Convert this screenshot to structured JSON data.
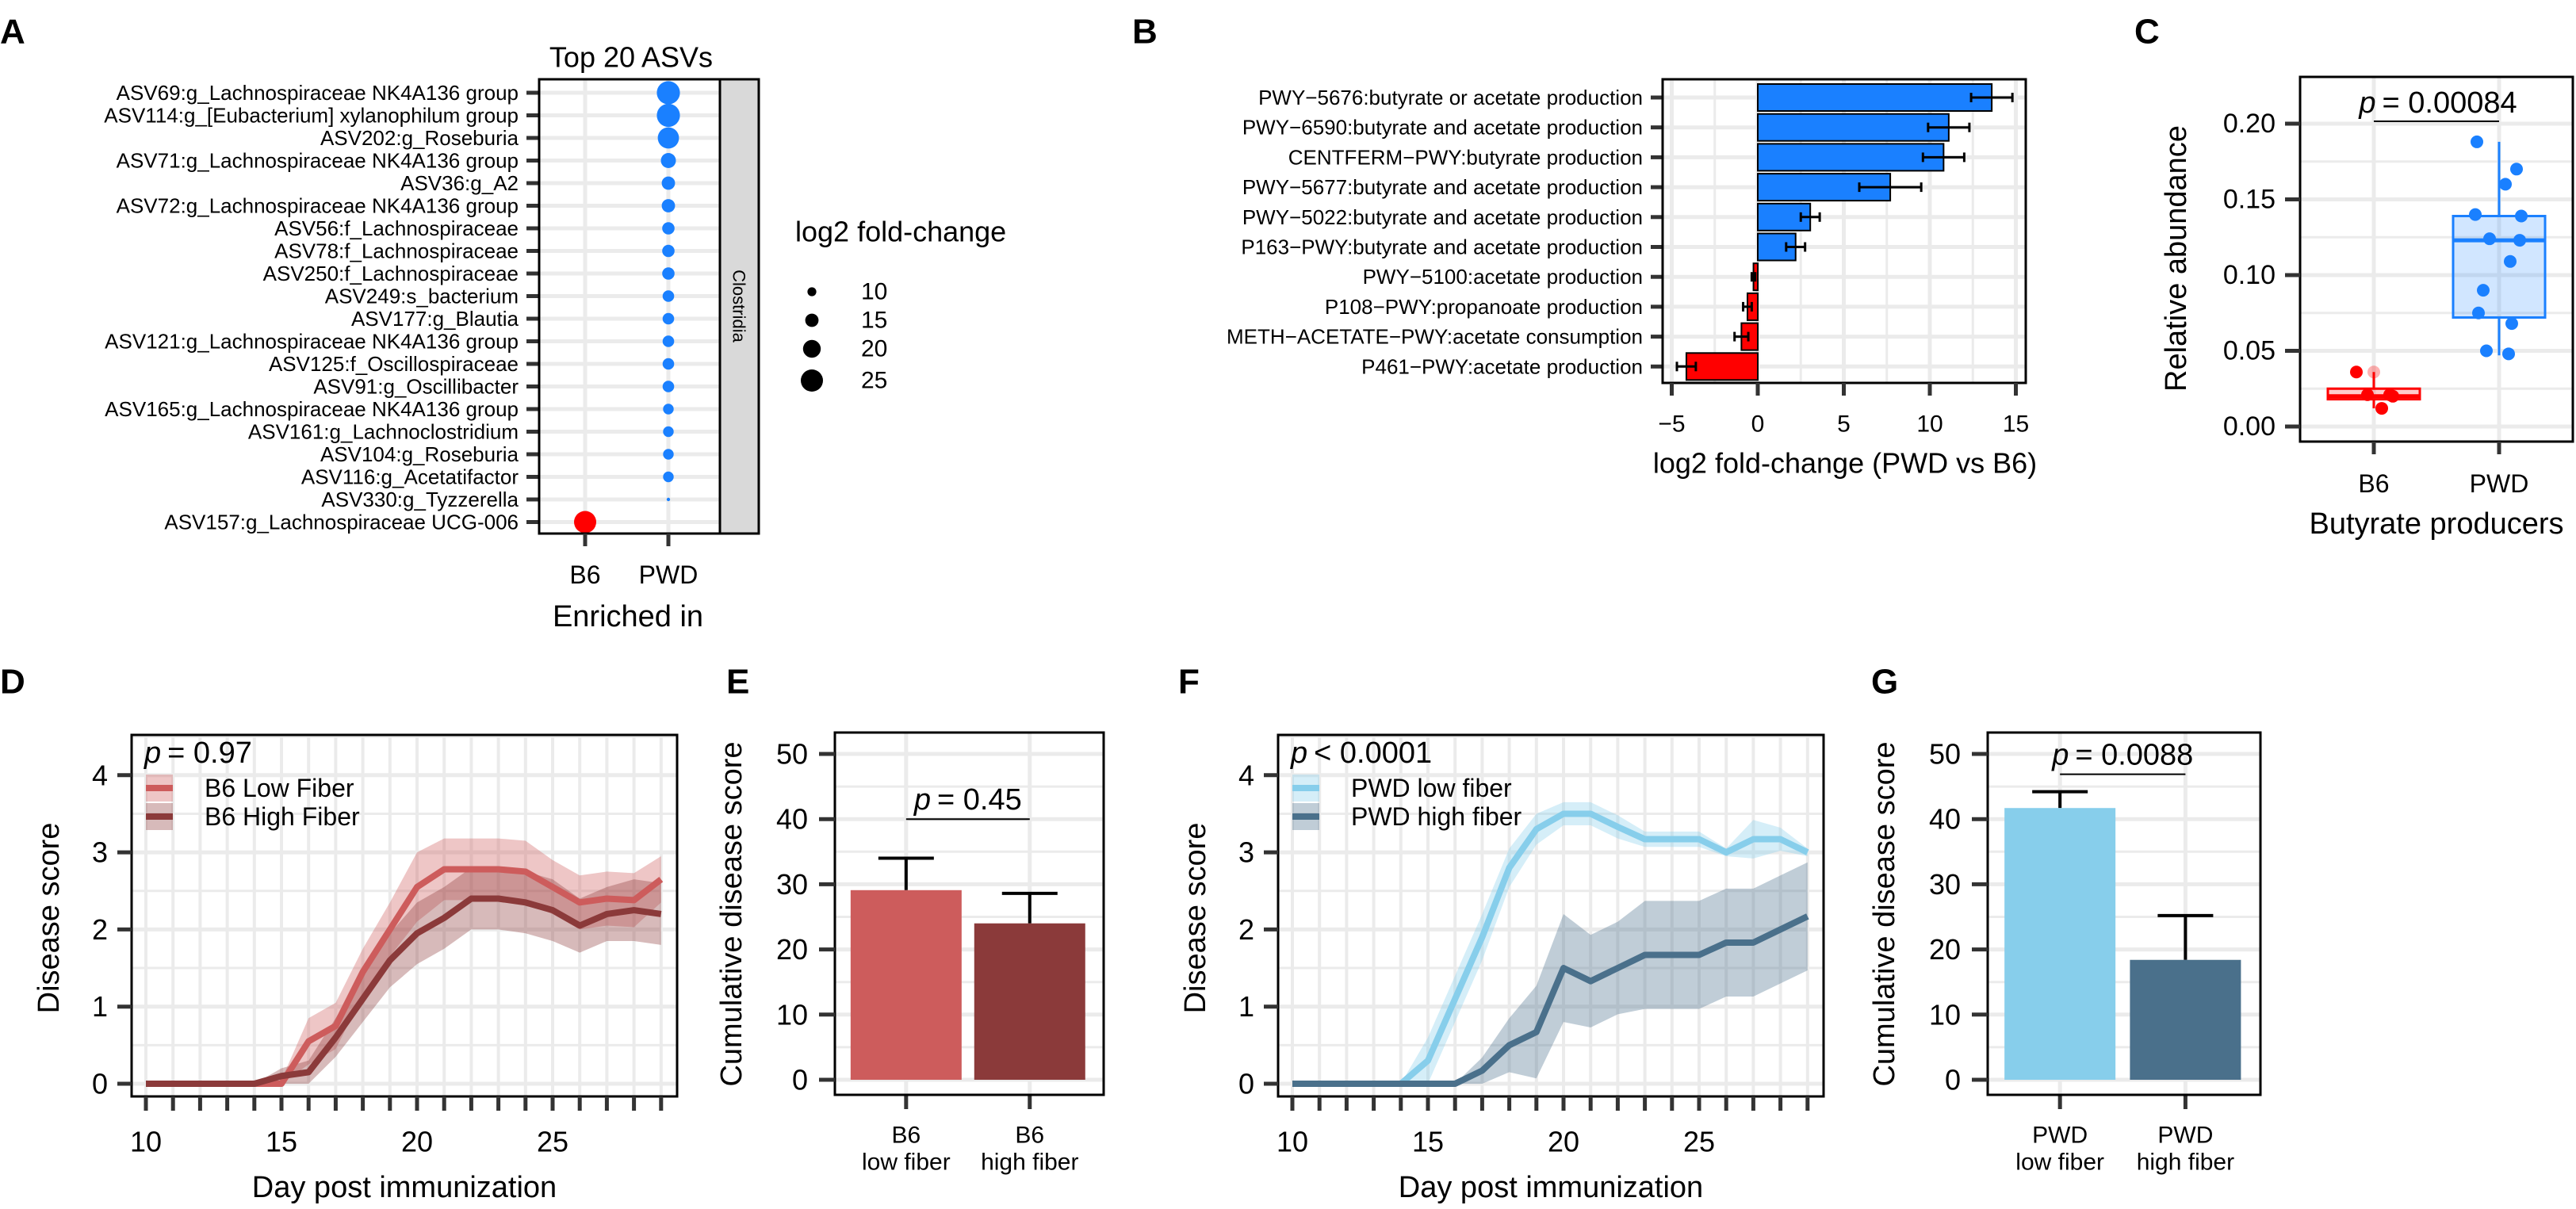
{
  "panel_letters": [
    "A",
    "B",
    "C",
    "D",
    "E",
    "F",
    "G"
  ],
  "chart_data": [
    {
      "panel": "A",
      "type": "scatter",
      "title": "Top 20 ASVs",
      "xlabel": "Enriched in",
      "x_categories": [
        "B6",
        "PWD"
      ],
      "facet_strip": "Clostridia",
      "legend": {
        "title": "log2 fold-change",
        "sizes": [
          10,
          15,
          20,
          25
        ],
        "labels": [
          "10",
          "15",
          "20",
          "25"
        ]
      },
      "colors": {
        "B6": "#ff0000",
        "PWD": "#1a80ff"
      },
      "rows": [
        {
          "label": "ASV69:g_Lachnospiraceae NK4A136 group",
          "group": "PWD",
          "lfc": 26
        },
        {
          "label": "ASV114:g_[Eubacterium] xylanophilum group",
          "group": "PWD",
          "lfc": 26
        },
        {
          "label": "ASV202:g_Roseburia",
          "group": "PWD",
          "lfc": 24
        },
        {
          "label": "ASV71:g_Lachnospiraceae NK4A136 group",
          "group": "PWD",
          "lfc": 17
        },
        {
          "label": "ASV36:g_A2",
          "group": "PWD",
          "lfc": 15
        },
        {
          "label": "ASV72:g_Lachnospiraceae NK4A136 group",
          "group": "PWD",
          "lfc": 15
        },
        {
          "label": "ASV56:f_Lachnospiraceae",
          "group": "PWD",
          "lfc": 14
        },
        {
          "label": "ASV78:f_Lachnospiraceae",
          "group": "PWD",
          "lfc": 14
        },
        {
          "label": "ASV250:f_Lachnospiraceae",
          "group": "PWD",
          "lfc": 14
        },
        {
          "label": "ASV249:s_bacterium",
          "group": "PWD",
          "lfc": 13
        },
        {
          "label": "ASV177:g_Blautia",
          "group": "PWD",
          "lfc": 13
        },
        {
          "label": "ASV121:g_Lachnospiraceae NK4A136 group",
          "group": "PWD",
          "lfc": 13
        },
        {
          "label": "ASV125:f_Oscillospiraceae",
          "group": "PWD",
          "lfc": 13
        },
        {
          "label": "ASV91:g_Oscillibacter",
          "group": "PWD",
          "lfc": 13
        },
        {
          "label": "ASV165:g_Lachnospiraceae NK4A136 group",
          "group": "PWD",
          "lfc": 12
        },
        {
          "label": "ASV161:g_Lachnoclostridium",
          "group": "PWD",
          "lfc": 12
        },
        {
          "label": "ASV104:g_Roseburia",
          "group": "PWD",
          "lfc": 12
        },
        {
          "label": "ASV116:g_Acetatifactor",
          "group": "PWD",
          "lfc": 12
        },
        {
          "label": "ASV330:g_Tyzzerella",
          "group": "PWD",
          "lfc": 4
        },
        {
          "label": "ASV157:g_Lachnospiraceae UCG-006",
          "group": "B6",
          "lfc": 25
        }
      ]
    },
    {
      "panel": "B",
      "type": "bar",
      "orientation": "horizontal",
      "xlabel": "log2 fold-change (PWD vs B6)",
      "xlim": [
        -5.5,
        15.6
      ],
      "xticks": [
        -5,
        0,
        5,
        10,
        15
      ],
      "xtick_labels": [
        "−5",
        "0",
        "5",
        "10",
        "15"
      ],
      "colors": {
        "positive": "#1a80ff",
        "negative": "#ff0000"
      },
      "categories": [
        "PWY−5676:butyrate or acetate production",
        "PWY−6590:butyrate and acetate production",
        "CENTFERM−PWY:butyrate production",
        "PWY−5677:butyrate and acetate production",
        "PWY−5022:butyrate and acetate production",
        "P163−PWY:butyrate and acetate production",
        "PWY−5100:acetate production",
        "P108−PWY:propanoate production",
        "METH−ACETATE−PWY:acetate consumption",
        "P461−PWY:acetate production"
      ],
      "values": [
        13.6,
        11.1,
        10.8,
        7.7,
        3.05,
        2.2,
        -0.25,
        -0.6,
        -0.95,
        -4.15
      ],
      "errors": [
        1.2,
        1.2,
        1.2,
        1.8,
        0.55,
        0.55,
        0.1,
        0.25,
        0.4,
        0.55
      ]
    },
    {
      "panel": "C",
      "type": "box",
      "ylabel": "Relative abundance",
      "xlabel": "Butyrate producers",
      "ylim": [
        0,
        0.22
      ],
      "yticks": [
        0,
        0.05,
        0.1,
        0.15,
        0.2
      ],
      "ytick_labels": [
        "0.00",
        "0.05",
        "0.10",
        "0.15",
        "0.20"
      ],
      "p_symbol": "p",
      "p_text": "= 0.00084",
      "groups": [
        {
          "name": "B6",
          "color": "#ff0000",
          "box": {
            "min": 0.012,
            "q1": 0.018,
            "median": 0.02,
            "q3": 0.025,
            "max": 0.036
          },
          "points": [
            0.036,
            0.036,
            0.021,
            0.021,
            0.02,
            0.012
          ]
        },
        {
          "name": "PWD",
          "color": "#1a80ff",
          "box": {
            "min": 0.047,
            "q1": 0.072,
            "median": 0.123,
            "q3": 0.139,
            "max": 0.188
          },
          "points": [
            0.188,
            0.17,
            0.16,
            0.14,
            0.139,
            0.124,
            0.123,
            0.109,
            0.09,
            0.075,
            0.068,
            0.05,
            0.048
          ]
        }
      ]
    },
    {
      "panel": "D",
      "type": "line",
      "xlabel": "Day post immunization",
      "ylabel": "Disease score",
      "xlim": [
        10,
        29
      ],
      "ylim": [
        0,
        4
      ],
      "xtick_labels": [
        "10",
        "15",
        "20",
        "25"
      ],
      "ytick_labels": [
        "0",
        "1",
        "2",
        "3",
        "4"
      ],
      "p_symbol": "p",
      "p_text": "= 0.97",
      "x": [
        10,
        11,
        12,
        13,
        14,
        15,
        16,
        17,
        18,
        19,
        20,
        21,
        22,
        23,
        24,
        25,
        26,
        27,
        28,
        29
      ],
      "series": [
        {
          "name": "B6 Low Fiber",
          "color": "#cd5c5c",
          "values": [
            0,
            0,
            0,
            0,
            0,
            0,
            0.55,
            0.75,
            1.45,
            2.0,
            2.55,
            2.78,
            2.78,
            2.78,
            2.75,
            2.55,
            2.35,
            2.4,
            2.38,
            2.65
          ],
          "se": [
            0,
            0,
            0,
            0,
            0,
            0.05,
            0.3,
            0.3,
            0.3,
            0.35,
            0.45,
            0.4,
            0.4,
            0.4,
            0.4,
            0.35,
            0.35,
            0.35,
            0.35,
            0.3
          ]
        },
        {
          "name": "B6 High Fiber",
          "color": "#8b3a3a",
          "values": [
            0,
            0,
            0,
            0,
            0,
            0.1,
            0.15,
            0.6,
            1.1,
            1.6,
            1.95,
            2.15,
            2.4,
            2.4,
            2.35,
            2.25,
            2.05,
            2.2,
            2.25,
            2.2
          ],
          "se": [
            0,
            0,
            0,
            0,
            0,
            0.1,
            0.15,
            0.25,
            0.3,
            0.35,
            0.4,
            0.4,
            0.4,
            0.4,
            0.4,
            0.4,
            0.35,
            0.35,
            0.4,
            0.4
          ]
        }
      ]
    },
    {
      "panel": "E",
      "type": "bar",
      "ylabel": "Cumulative disease score",
      "ylim": [
        0,
        50
      ],
      "ytick_labels": [
        "0",
        "10",
        "20",
        "30",
        "40",
        "50"
      ],
      "p_symbol": "p",
      "p_text": "= 0.45",
      "categories": [
        [
          "B6",
          "low fiber"
        ],
        [
          "B6",
          "high fiber"
        ]
      ],
      "values": [
        29.1,
        24.0
      ],
      "errors": [
        4.9,
        4.6
      ],
      "colors": [
        "#cd5c5c",
        "#8b3a3a"
      ]
    },
    {
      "panel": "F",
      "type": "line",
      "xlabel": "Day post immunization",
      "ylabel": "Disease score",
      "xlim": [
        10,
        29
      ],
      "ylim": [
        0,
        4
      ],
      "xtick_labels": [
        "10",
        "15",
        "20",
        "25"
      ],
      "ytick_labels": [
        "0",
        "1",
        "2",
        "3",
        "4"
      ],
      "p_symbol": "p",
      "p_text": "< 0.0001",
      "x": [
        10,
        11,
        12,
        13,
        14,
        15,
        16,
        17,
        18,
        19,
        20,
        21,
        22,
        23,
        24,
        25,
        26,
        27,
        28,
        29
      ],
      "series": [
        {
          "name": "PWD low fiber",
          "color": "#87ceeb",
          "values": [
            0,
            0,
            0,
            0,
            0,
            0.3,
            1.1,
            1.9,
            2.8,
            3.3,
            3.5,
            3.5,
            3.33,
            3.17,
            3.17,
            3.17,
            3.0,
            3.17,
            3.17,
            3.0
          ],
          "se": [
            0,
            0,
            0,
            0,
            0,
            0.3,
            0.3,
            0.3,
            0.25,
            0.2,
            0.15,
            0.15,
            0.15,
            0.1,
            0.1,
            0.1,
            0.05,
            0.25,
            0.15,
            0.05
          ]
        },
        {
          "name": "PWD high fiber",
          "color": "#4a708b",
          "values": [
            0,
            0,
            0,
            0,
            0,
            0,
            0,
            0.17,
            0.5,
            0.67,
            1.5,
            1.33,
            1.5,
            1.67,
            1.67,
            1.67,
            1.83,
            1.83,
            2.0,
            2.17
          ],
          "se": [
            0,
            0,
            0,
            0,
            0,
            0,
            0,
            0.17,
            0.35,
            0.6,
            0.7,
            0.6,
            0.6,
            0.7,
            0.7,
            0.7,
            0.7,
            0.7,
            0.7,
            0.7
          ]
        }
      ]
    },
    {
      "panel": "G",
      "type": "bar",
      "ylabel": "Cumulative disease score",
      "ylim": [
        0,
        50
      ],
      "ytick_labels": [
        "0",
        "10",
        "20",
        "30",
        "40",
        "50"
      ],
      "p_symbol": "p",
      "p_text": "= 0.0088",
      "categories": [
        [
          "PWD",
          "low fiber"
        ],
        [
          "PWD",
          "high fiber"
        ]
      ],
      "values": [
        41.7,
        18.4
      ],
      "errors": [
        2.5,
        6.8
      ],
      "colors": [
        "#87ceeb",
        "#4a708b"
      ]
    }
  ]
}
